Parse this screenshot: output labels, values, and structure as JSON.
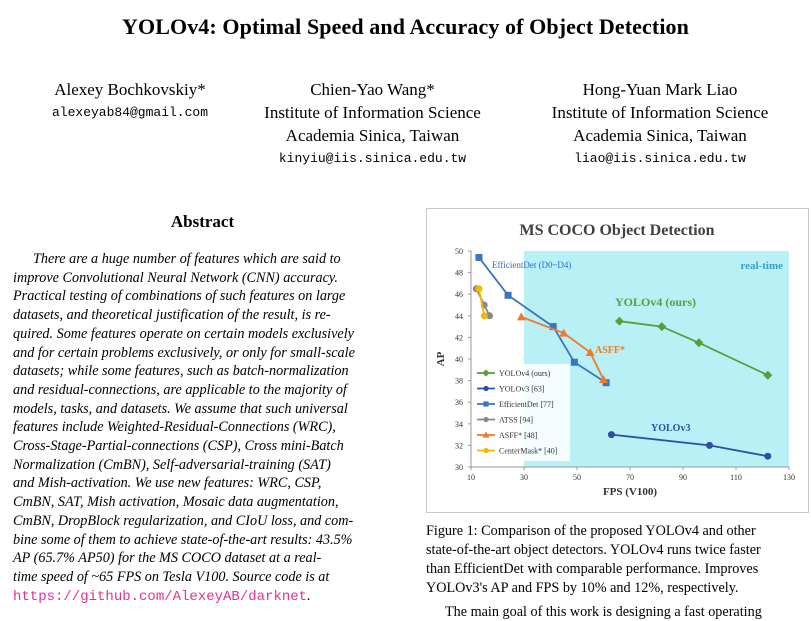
{
  "paper": {
    "title": "YOLOv4: Optimal Speed and Accuracy of Object Detection",
    "authors": [
      {
        "name": "Alexey Bochkovskiy*",
        "affiliation": [],
        "email": "alexeyab84@gmail.com"
      },
      {
        "name": "Chien-Yao Wang*",
        "affiliation": [
          "Institute of Information Science",
          "Academia Sinica, Taiwan"
        ],
        "email": "kinyiu@iis.sinica.edu.tw"
      },
      {
        "name": "Hong-Yuan Mark Liao",
        "affiliation": [
          "Institute of Information Science",
          "Academia Sinica, Taiwan"
        ],
        "email": "liao@iis.sinica.edu.tw"
      }
    ],
    "abstract_heading": "Abstract",
    "abstract_lines": [
      "There are a huge number of features which are said to",
      "improve Convolutional Neural Network (CNN) accuracy.",
      "Practical testing of combinations of such features on large",
      "datasets, and theoretical justification of the result, is re-",
      "quired. Some features operate on certain models exclusively",
      "and for certain problems exclusively, or only for small-scale",
      "datasets; while some features, such as batch-normalization",
      "and residual-connections, are applicable to the majority of",
      "models, tasks, and datasets. We assume that such universal",
      "features include Weighted-Residual-Connections (WRC),",
      "Cross-Stage-Partial-connections (CSP), Cross mini-Batch",
      "Normalization (CmBN), Self-adversarial-training (SAT)",
      "and Mish-activation.  We use new features: WRC, CSP,",
      "CmBN, SAT, Mish activation, Mosaic data augmentation,",
      "CmBN, DropBlock regularization, and CIoU loss, and com-",
      "bine some of them to achieve state-of-the-art results: 43.5%",
      "AP (65.7% AP50) for the MS COCO dataset at a real-",
      "time speed of ~65 FPS on Tesla V100.  Source code is at"
    ],
    "abstract_url": "https://github.com/AlexeyAB/darknet",
    "abstract_url_suffix": ".",
    "caption_lines": [
      "Figure 1: Comparison of the proposed YOLOv4 and other",
      "state-of-the-art object detectors. YOLOv4 runs twice faster",
      "than EfficientDet with comparable performance. Improves",
      "YOLOv3's AP and FPS by 10% and 12%, respectively."
    ],
    "body_start": "The main goal of this work is designing a fast operating"
  },
  "chart_data": {
    "type": "line",
    "title": "MS COCO Object Detection",
    "xlabel": "FPS (V100)",
    "ylabel": "AP",
    "xlim": [
      10,
      130
    ],
    "ylim": [
      30,
      50
    ],
    "xticks": [
      10,
      30,
      50,
      70,
      90,
      110,
      130
    ],
    "yticks": [
      30,
      32,
      34,
      36,
      38,
      40,
      42,
      44,
      46,
      48,
      50
    ],
    "realtime_region": {
      "x_from": 30,
      "label": "real-time"
    },
    "series": [
      {
        "name": "YOLOv4 (ours)",
        "color": "#5a9e3a",
        "marker": "diamond",
        "x": [
          66,
          82,
          96,
          122
        ],
        "y": [
          43.5,
          43.0,
          41.5,
          38.5
        ]
      },
      {
        "name": "YOLOv3 [63]",
        "color": "#2f4fa6",
        "marker": "circle",
        "x": [
          63,
          100,
          122
        ],
        "y": [
          33.0,
          32.0,
          31.0
        ]
      },
      {
        "name": "EfficientDet [77]",
        "color": "#3a74c4",
        "marker": "square",
        "x": [
          13,
          24,
          41,
          49,
          61
        ],
        "y": [
          49.4,
          45.9,
          43.0,
          39.7,
          37.8
        ]
      },
      {
        "name": "ATSS [94]",
        "color": "#888888",
        "marker": "circle",
        "x": [
          12,
          15,
          17
        ],
        "y": [
          46.5,
          45.0,
          44.0
        ]
      },
      {
        "name": "ASFF* [48]",
        "color": "#f07a2a",
        "marker": "triangle",
        "x": [
          29,
          45,
          55,
          60
        ],
        "y": [
          43.9,
          42.4,
          40.6,
          38.1
        ]
      },
      {
        "name": "CenterMask* [40]",
        "color": "#f5b800",
        "marker": "circle",
        "x": [
          13,
          15
        ],
        "y": [
          46.5,
          44.0
        ]
      }
    ],
    "annotations": [
      {
        "text": "EfficientDet (D0~D4)",
        "color": "#2f6fc4"
      },
      {
        "text": "YOLOv4 (ours)",
        "color": "#5a9e3a"
      },
      {
        "text": "ASFF*",
        "color": "#f07a2a"
      },
      {
        "text": "YOLOv3",
        "color": "#2f4fa6"
      }
    ]
  }
}
